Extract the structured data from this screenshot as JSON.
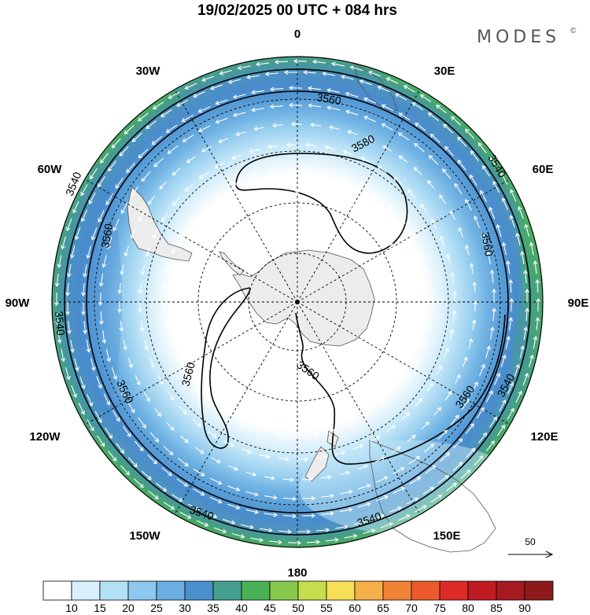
{
  "header": {
    "title": "19/02/2025  00 UTC  + 084 hrs",
    "brand": "MODES",
    "brand_mark": "©"
  },
  "map": {
    "projection": "south polar stereographic",
    "longitude_labels": [
      {
        "text": "0",
        "lon": 0
      },
      {
        "text": "30E",
        "lon": 30
      },
      {
        "text": "60E",
        "lon": 60
      },
      {
        "text": "90E",
        "lon": 90
      },
      {
        "text": "120E",
        "lon": 120
      },
      {
        "text": "150E",
        "lon": 150
      },
      {
        "text": "180",
        "lon": 180
      },
      {
        "text": "150W",
        "lon": -150
      },
      {
        "text": "120W",
        "lon": -120
      },
      {
        "text": "90W",
        "lon": -90
      },
      {
        "text": "60W",
        "lon": -60
      },
      {
        "text": "30W",
        "lon": -30
      }
    ],
    "contour_labels": [
      "3580",
      "3560",
      "3560",
      "3560",
      "3560",
      "3560",
      "3560",
      "3560",
      "3540",
      "3540",
      "3540",
      "3540",
      "3540",
      "3540"
    ],
    "vector_reference": "50"
  },
  "colorbar": {
    "colors": [
      "#ffffff",
      "#d8f0fb",
      "#b3e1f6",
      "#8ec8ee",
      "#6aaee2",
      "#4b8fcd",
      "#45a090",
      "#4ab256",
      "#86c84c",
      "#c4de4e",
      "#f6e05a",
      "#f6b04a",
      "#f18336",
      "#ec5a2c",
      "#dd2a26",
      "#c01a22",
      "#a51a20",
      "#8c1a1a"
    ],
    "ticks": [
      "10",
      "15",
      "20",
      "25",
      "30",
      "35",
      "40",
      "45",
      "50",
      "55",
      "60",
      "65",
      "70",
      "75",
      "80",
      "85",
      "90"
    ]
  }
}
